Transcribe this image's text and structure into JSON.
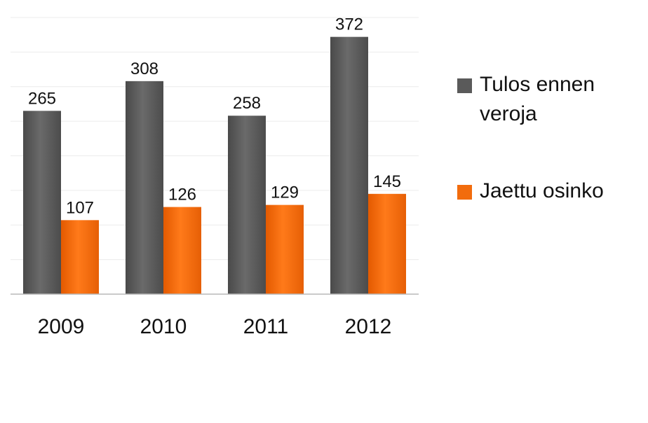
{
  "chart_data": {
    "type": "bar",
    "categories": [
      "2009",
      "2010",
      "2011",
      "2012"
    ],
    "series": [
      {
        "name": "Tulos ennen veroja",
        "values": [
          265,
          308,
          258,
          372
        ],
        "color": "#5a5a5a"
      },
      {
        "name": "Jaettu osinko",
        "values": [
          107,
          126,
          129,
          145
        ],
        "color": "#f26c0d"
      }
    ],
    "ylim": [
      0,
      400
    ],
    "grid": true,
    "data_labels": true,
    "legend_position": "right"
  }
}
